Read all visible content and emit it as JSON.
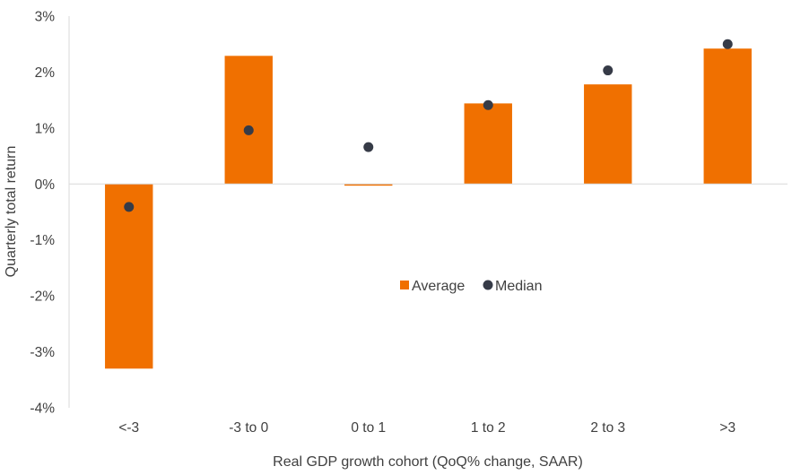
{
  "chart_data": {
    "type": "bar",
    "title": "",
    "xlabel": "Real GDP growth cohort (QoQ% change, SAAR)",
    "ylabel": "Quarterly total return",
    "ylim": [
      -4,
      3
    ],
    "yticks": [
      3,
      2,
      1,
      0,
      -1,
      -2,
      -3,
      -4
    ],
    "ytick_labels": [
      "3%",
      "2%",
      "1%",
      "0%",
      "-1%",
      "-2%",
      "-3%",
      "-4%"
    ],
    "grid": false,
    "categories": [
      "<-3",
      "-3 to 0",
      "0 to 1",
      "1 to 2",
      "2 to 3",
      ">3"
    ],
    "series": [
      {
        "name": "Average",
        "type": "bar",
        "color": "#F07000",
        "values": [
          -3.3,
          2.29,
          -0.03,
          1.44,
          1.78,
          2.42
        ]
      },
      {
        "name": "Median",
        "type": "scatter",
        "color": "#363B47",
        "values": [
          -0.41,
          0.96,
          0.66,
          1.41,
          2.03,
          2.5
        ]
      }
    ],
    "legend": {
      "position": "center-right",
      "entries": [
        "Average",
        "Median"
      ]
    },
    "axis_color": "#D9D9D9",
    "text_color": "#404040"
  }
}
